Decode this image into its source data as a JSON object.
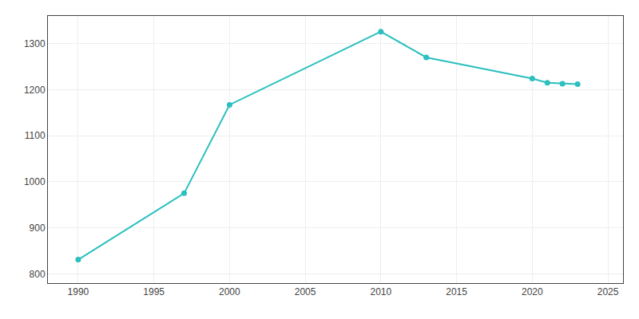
{
  "chart_data": {
    "type": "line",
    "x": [
      1990,
      1997,
      2000,
      2010,
      2013,
      2020,
      2021,
      2022,
      2023
    ],
    "values": [
      831,
      975,
      1167,
      1326,
      1270,
      1224,
      1215,
      1213,
      1212
    ],
    "color": "#2bbfbf",
    "marker": "circle",
    "xlim": [
      1988,
      2026
    ],
    "ylim": [
      780,
      1360
    ],
    "xticks": [
      1990,
      1995,
      2000,
      2005,
      2010,
      2015,
      2020,
      2025
    ],
    "yticks": [
      800,
      900,
      1000,
      1100,
      1200,
      1300
    ],
    "grid": true
  }
}
